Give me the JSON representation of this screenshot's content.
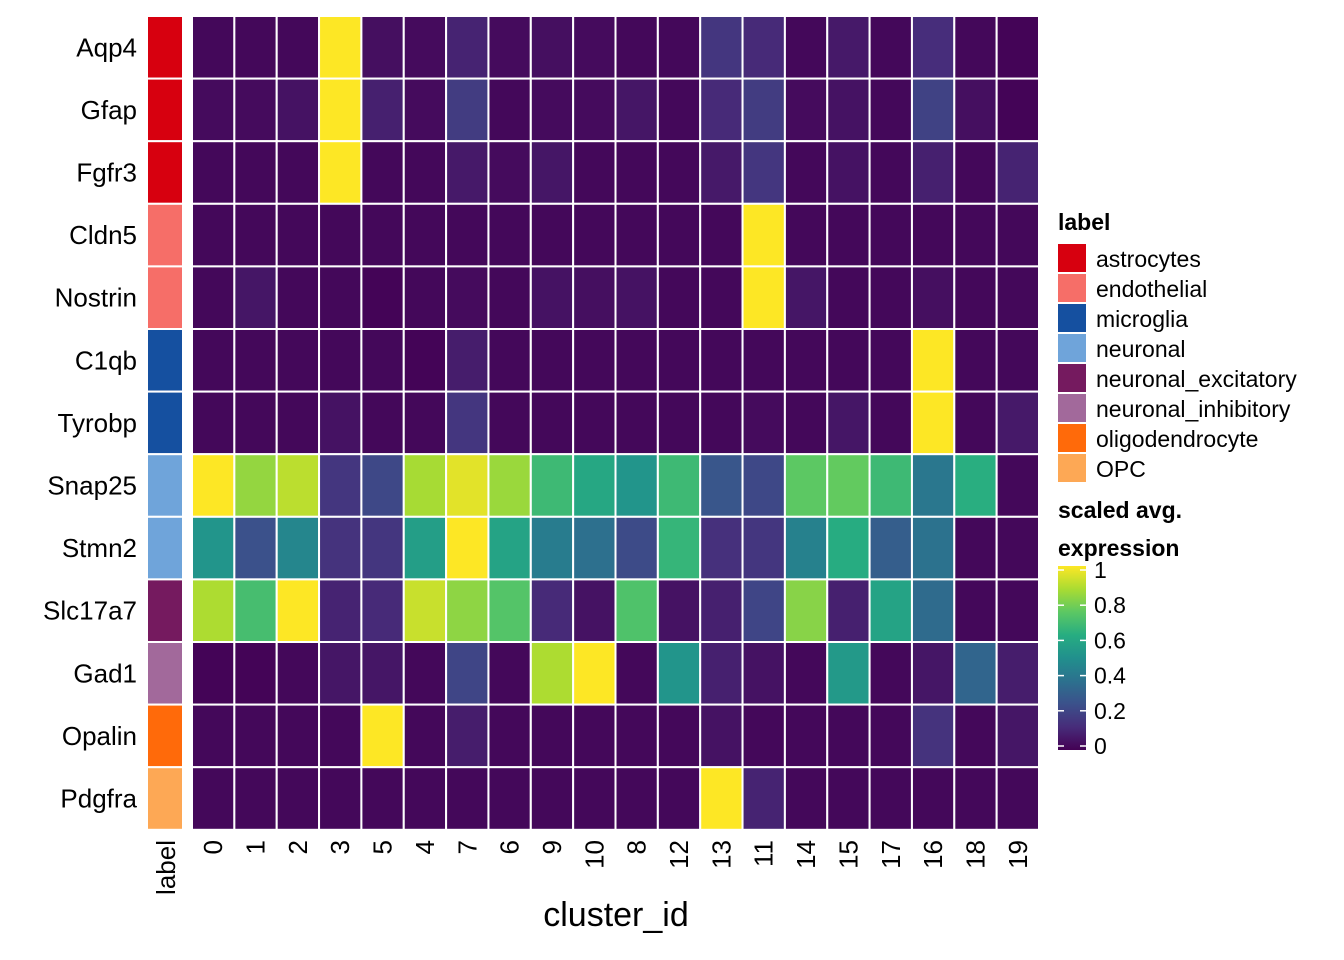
{
  "chart_data": {
    "type": "heatmap",
    "xlabel": "cluster_id",
    "ylabel": "",
    "label_column_title": "label",
    "x": [
      "0",
      "1",
      "2",
      "3",
      "5",
      "4",
      "7",
      "6",
      "9",
      "10",
      "8",
      "12",
      "13",
      "11",
      "14",
      "15",
      "17",
      "16",
      "18",
      "19"
    ],
    "genes": [
      "Aqp4",
      "Gfap",
      "Fgfr3",
      "Cldn5",
      "Nostrin",
      "C1qb",
      "Tyrobp",
      "Snap25",
      "Stmn2",
      "Slc17a7",
      "Gad1",
      "Opalin",
      "Pdgfra"
    ],
    "gene_labels": [
      "astrocytes",
      "astrocytes",
      "astrocytes",
      "endothelial",
      "endothelial",
      "microglia",
      "microglia",
      "neuronal",
      "neuronal",
      "neuronal_excitatory",
      "neuronal_inhibitory",
      "oligodendrocyte",
      "OPC"
    ],
    "values": [
      [
        0.02,
        0.02,
        0.02,
        1.0,
        0.04,
        0.03,
        0.1,
        0.03,
        0.04,
        0.03,
        0.02,
        0.02,
        0.16,
        0.12,
        0.02,
        0.07,
        0.02,
        0.13,
        0.02,
        0.01
      ],
      [
        0.03,
        0.03,
        0.05,
        1.0,
        0.09,
        0.03,
        0.18,
        0.02,
        0.03,
        0.03,
        0.06,
        0.02,
        0.12,
        0.18,
        0.03,
        0.05,
        0.02,
        0.2,
        0.04,
        0.01
      ],
      [
        0.02,
        0.02,
        0.02,
        1.0,
        0.02,
        0.02,
        0.07,
        0.03,
        0.06,
        0.02,
        0.02,
        0.02,
        0.07,
        0.16,
        0.02,
        0.05,
        0.02,
        0.09,
        0.02,
        0.1
      ],
      [
        0.02,
        0.02,
        0.02,
        0.02,
        0.02,
        0.02,
        0.02,
        0.02,
        0.02,
        0.02,
        0.02,
        0.02,
        0.02,
        1.0,
        0.02,
        0.02,
        0.02,
        0.02,
        0.02,
        0.02
      ],
      [
        0.02,
        0.06,
        0.02,
        0.02,
        0.01,
        0.02,
        0.03,
        0.02,
        0.05,
        0.04,
        0.05,
        0.02,
        0.02,
        1.0,
        0.06,
        0.02,
        0.02,
        0.04,
        0.02,
        0.02
      ],
      [
        0.02,
        0.02,
        0.02,
        0.02,
        0.02,
        0.01,
        0.08,
        0.02,
        0.02,
        0.02,
        0.02,
        0.02,
        0.02,
        0.02,
        0.02,
        0.02,
        0.02,
        1.0,
        0.02,
        0.02
      ],
      [
        0.02,
        0.02,
        0.02,
        0.05,
        0.02,
        0.02,
        0.16,
        0.02,
        0.02,
        0.02,
        0.02,
        0.02,
        0.02,
        0.03,
        0.02,
        0.06,
        0.02,
        1.0,
        0.02,
        0.07
      ],
      [
        1.0,
        0.84,
        0.9,
        0.16,
        0.22,
        0.87,
        0.96,
        0.85,
        0.68,
        0.6,
        0.52,
        0.68,
        0.27,
        0.22,
        0.75,
        0.76,
        0.68,
        0.4,
        0.63,
        0.02
      ],
      [
        0.52,
        0.25,
        0.46,
        0.15,
        0.16,
        0.56,
        1.0,
        0.58,
        0.42,
        0.37,
        0.23,
        0.66,
        0.14,
        0.16,
        0.44,
        0.62,
        0.3,
        0.38,
        0.02,
        0.02
      ],
      [
        0.88,
        0.7,
        1.0,
        0.1,
        0.12,
        0.92,
        0.83,
        0.73,
        0.12,
        0.05,
        0.72,
        0.05,
        0.09,
        0.21,
        0.82,
        0.09,
        0.58,
        0.35,
        0.02,
        0.02
      ],
      [
        0.01,
        0.01,
        0.02,
        0.06,
        0.06,
        0.02,
        0.21,
        0.02,
        0.88,
        1.0,
        0.02,
        0.52,
        0.09,
        0.05,
        0.02,
        0.54,
        0.02,
        0.06,
        0.33,
        0.08
      ],
      [
        0.02,
        0.02,
        0.02,
        0.02,
        1.0,
        0.02,
        0.08,
        0.02,
        0.02,
        0.02,
        0.02,
        0.02,
        0.05,
        0.02,
        0.02,
        0.02,
        0.02,
        0.15,
        0.02,
        0.06
      ],
      [
        0.02,
        0.02,
        0.02,
        0.02,
        0.02,
        0.02,
        0.02,
        0.02,
        0.02,
        0.02,
        0.02,
        0.02,
        1.0,
        0.1,
        0.02,
        0.02,
        0.02,
        0.02,
        0.02,
        0.02
      ]
    ],
    "color_scale": {
      "name": "viridis",
      "range": [
        0,
        1
      ],
      "ticks": [
        "0",
        "0.2",
        "0.4",
        "0.6",
        "0.8",
        "1"
      ]
    },
    "legend": {
      "position": "right",
      "label_title": "label",
      "label_entries": [
        {
          "name": "astrocytes",
          "color": "#D7000F"
        },
        {
          "name": "endothelial",
          "color": "#F66E68"
        },
        {
          "name": "microglia",
          "color": "#1550A0"
        },
        {
          "name": "neuronal",
          "color": "#6FA4DA"
        },
        {
          "name": "neuronal_excitatory",
          "color": "#751A5F"
        },
        {
          "name": "neuronal_inhibitory",
          "color": "#A2699B"
        },
        {
          "name": "oligodendrocyte",
          "color": "#FF6A0A"
        },
        {
          "name": "OPC",
          "color": "#FDA855"
        }
      ],
      "scale_title_line1": "scaled avg.",
      "scale_title_line2": "expression"
    }
  }
}
